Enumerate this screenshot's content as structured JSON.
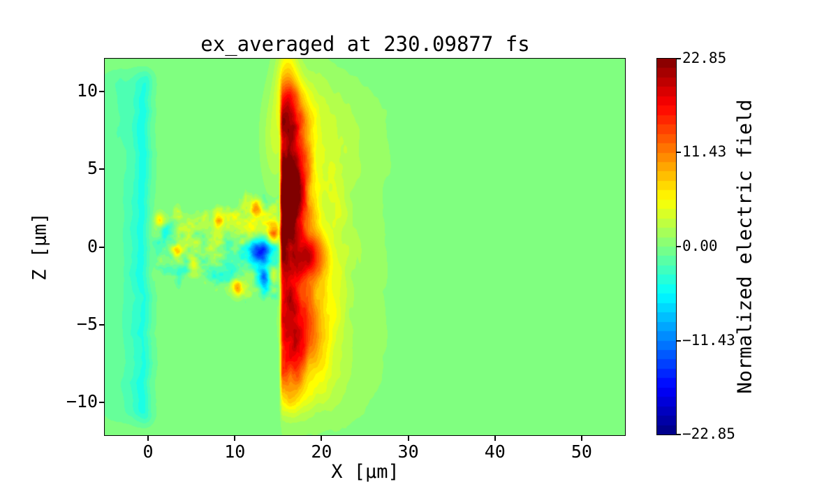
{
  "figure": {
    "background": "#ffffff"
  },
  "chart_data": {
    "type": "heatmap",
    "title": "ex_averaged at 230.09877 fs",
    "field_name": "ex_averaged",
    "time_fs": 230.09877,
    "xlabel": "X [μm]",
    "ylabel": "Z [μm]",
    "x_range": [
      -5,
      55
    ],
    "z_range": [
      -12.1,
      12.1
    ],
    "x_ticks": [
      {
        "value": 0,
        "label": "0"
      },
      {
        "value": 10,
        "label": "10"
      },
      {
        "value": 20,
        "label": "20"
      },
      {
        "value": 30,
        "label": "30"
      },
      {
        "value": 40,
        "label": "40"
      },
      {
        "value": 50,
        "label": "50"
      }
    ],
    "y_ticks": [
      {
        "value": 10,
        "label": "10"
      },
      {
        "value": 5,
        "label": "5"
      },
      {
        "value": 0,
        "label": "0"
      },
      {
        "value": -5,
        "label": "−5"
      },
      {
        "value": -10,
        "label": "−10"
      }
    ],
    "colormap": "jet",
    "levels": 40,
    "colorbar": {
      "label": "Normalized electric field",
      "vmin": -22.85,
      "vmax": 22.85,
      "ticks": [
        {
          "value": 22.85,
          "label": "22.85"
        },
        {
          "value": 11.43,
          "label": "11.43"
        },
        {
          "value": 0.0,
          "label": "0.00"
        },
        {
          "value": -11.43,
          "label": "−11.43"
        },
        {
          "value": -22.85,
          "label": "−22.85"
        }
      ]
    },
    "description": "2D particle-in-cell field map: flat green background at 0; cyan plasma column near x=0 spanning |z|<11; turbulent speckled cone from x=0 to 15 with |z|<3.5 containing a deep-blue hole near (13,-0.4); intense vertical shock band at x=15-17 (dark red up to +23 near z=3, orange near z=-6) with yellow halo fading by x=27; red blob near (18.8,-0.6).",
    "value_model": {
      "quantize_step": 1.1425,
      "left_column": {
        "cx": -0.85,
        "sigma": 0.8,
        "amp": -2.6,
        "wobble_amp": 0.35,
        "wobble_freq": 0.55,
        "z_fade_start": 10.4,
        "z_fade_width": 1.6,
        "core": {
          "cx": -0.4,
          "sigma": 0.45,
          "amp": -1.1
        }
      },
      "left_halo": {
        "cx": -2.7,
        "sigma": 2.1,
        "amp": -1.5,
        "noise_freq_x": 0.5,
        "noise_freq_z": 0.16,
        "noise_mix": 0.45
      },
      "cone": {
        "x0": 0.1,
        "x_ramp": 1.4,
        "x1": 15.35,
        "x_end_ramp": 0.7,
        "hw0": 2.35,
        "hw_slope": 0.085,
        "edge_noise": 0.55,
        "edge_soft": 0.9,
        "noise_amp": 4.4,
        "fx": 0.52,
        "fz": 1.05,
        "biases": [
          {
            "x": 11.6,
            "sx": 3.0,
            "z": -1.5,
            "sz": 1.4,
            "amp": -2.6
          },
          {
            "x": 12.6,
            "sx": 2.4,
            "z": 2.2,
            "sz": 1.1,
            "amp": 1.8
          },
          {
            "x": 7.0,
            "sx": 4.5,
            "z": -3.0,
            "sz": 0.8,
            "amp": 1.6
          },
          {
            "x": 5.5,
            "sx": 4.0,
            "z": 2.9,
            "sz": 0.8,
            "amp": 1.4
          }
        ]
      },
      "spots": [
        {
          "x": 12.9,
          "z": -0.35,
          "sx": 0.85,
          "sz": 0.6,
          "amp": -15.5
        },
        {
          "x": 13.5,
          "z": -2.05,
          "sx": 0.5,
          "sz": 0.4,
          "amp": -9
        },
        {
          "x": 1.3,
          "z": 1.7,
          "sx": 0.4,
          "sz": 0.35,
          "amp": 7
        },
        {
          "x": 3.4,
          "z": -0.4,
          "sx": 0.4,
          "sz": 0.35,
          "amp": 7
        },
        {
          "x": 5.3,
          "z": -1.1,
          "sx": 0.5,
          "sz": 0.4,
          "amp": 8
        },
        {
          "x": 8.1,
          "z": 1.8,
          "sx": 0.45,
          "sz": 0.4,
          "amp": 7
        },
        {
          "x": 10.3,
          "z": -2.6,
          "sx": 0.5,
          "sz": 0.4,
          "amp": 8
        },
        {
          "x": 12.4,
          "z": 2.4,
          "sx": 0.45,
          "sz": 0.4,
          "amp": 8
        },
        {
          "x": 14.5,
          "z": 0.9,
          "sx": 0.55,
          "sz": 0.45,
          "amp": 10
        },
        {
          "x": 14.3,
          "z": -1.9,
          "sx": 0.5,
          "sz": 0.4,
          "amp": 9
        },
        {
          "x": 18.8,
          "z": -0.6,
          "sx": 1.15,
          "sz": 0.95,
          "amp": 9.5
        },
        {
          "x": 18.3,
          "z": -4.8,
          "sx": 1.7,
          "sz": 2.2,
          "amp": 4.5
        },
        {
          "x": 16.1,
          "z": 10.2,
          "sx": 0.9,
          "sz": 1.9,
          "amp": 7.5
        },
        {
          "x": 14.6,
          "z": 7.0,
          "sx": 1.0,
          "sz": 2.2,
          "amp": 3.0
        }
      ],
      "shock_band": {
        "x_edge": 15.05,
        "edge_ramp": 0.5,
        "cx": 15.95,
        "sigma_right": 1.55,
        "z_fade_start": 9.6,
        "z_fade_width": 2.0,
        "texture_freq_x": 0.85,
        "texture_freq_z": 0.6,
        "texture_mix": 0.26,
        "amp_cap": 23.6,
        "peaks": [
          {
            "z": 3.1,
            "sigma": 2.0,
            "amp": 23.5
          },
          {
            "z": 7.8,
            "sigma": 1.9,
            "amp": 10.5
          },
          {
            "z": -0.9,
            "sigma": 1.3,
            "amp": 7.5
          },
          {
            "z": -5.9,
            "sigma": 2.9,
            "amp": 13.0
          }
        ],
        "halos": [
          {
            "cx": 17.3,
            "sigma": 3.0,
            "amp": 6.3,
            "z_pow_scale": 10.3,
            "z_pow": 6
          },
          {
            "cx": 19.0,
            "sigma": 5.2,
            "amp": 2.5,
            "z_pow_scale": 11.0,
            "z_pow": 6
          }
        ]
      }
    }
  }
}
